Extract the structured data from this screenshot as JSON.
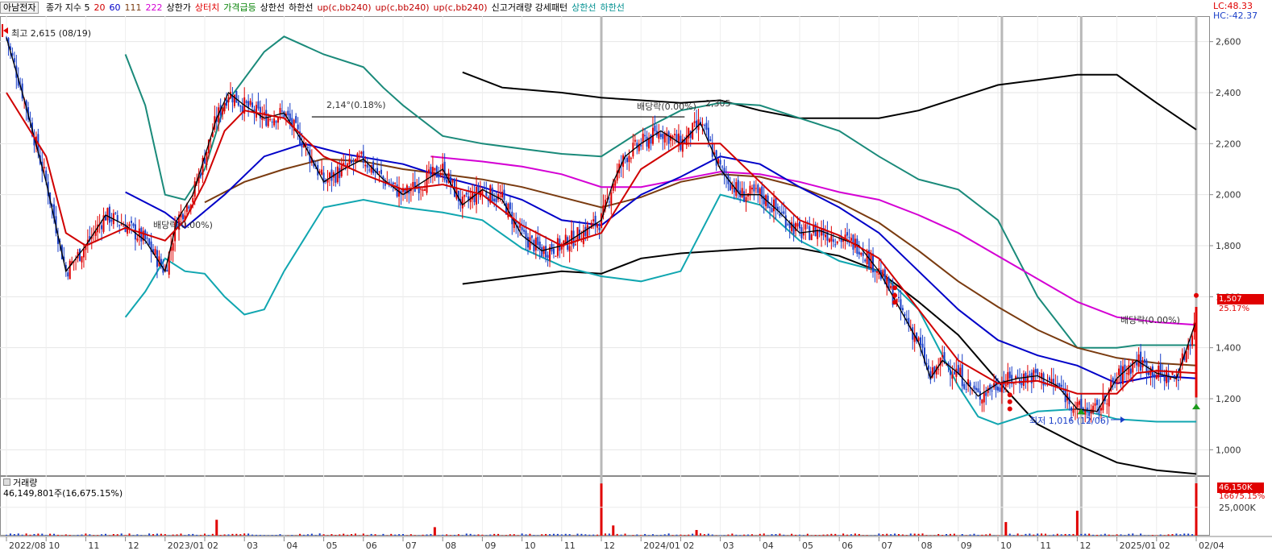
{
  "legend": {
    "symbol": "아남전자",
    "items": [
      {
        "text": "종가 지수 5",
        "color": "#000000"
      },
      {
        "text": "20",
        "color": "#d00000"
      },
      {
        "text": "60",
        "color": "#0000c8"
      },
      {
        "text": "111",
        "color": "#7a3b10"
      },
      {
        "text": "222",
        "color": "#d400d4"
      },
      {
        "text": "상한가",
        "color": "#000000"
      },
      {
        "text": "상터치",
        "color": "#e00000"
      },
      {
        "text": "가격급등",
        "color": "#008000"
      },
      {
        "text": "상한선",
        "color": "#000000"
      },
      {
        "text": "하한선",
        "color": "#000000"
      },
      {
        "text": "up(c,bb240)",
        "color": "#c00000"
      },
      {
        "text": "up(c,bb240)",
        "color": "#c00000"
      },
      {
        "text": "up(c,bb240)",
        "color": "#c00000"
      },
      {
        "text": "신고거래량 강세패턴",
        "color": "#000000"
      },
      {
        "text": "상한선",
        "color": "#009090"
      },
      {
        "text": "하한선",
        "color": "#009090"
      }
    ]
  },
  "corner": {
    "lc": "LC:48.33",
    "hc": "HC:-42.37"
  },
  "annotations": {
    "high": "최고 2,615 (08/19)",
    "low": "최저 1,016 (12/06)",
    "div1": "배당락(0.00%)",
    "div2": "2,14°(0.18%)",
    "div3": "배당락(0.00%)",
    "level": "2,305",
    "div4": "배당락(0.00%)"
  },
  "price_tags": {
    "last": "1,507",
    "change": "25.17%"
  },
  "volume": {
    "title": "거래량",
    "value": "46,149,801주(16,675.15%)",
    "tag1": "46,150K",
    "tag2": "16675.15%"
  },
  "colors": {
    "up": "#e00000",
    "down": "#1a3fc8",
    "ma5": "#000000",
    "ma20": "#d00000",
    "ma60": "#0000c8",
    "ma111": "#7a3b10",
    "ma222": "#d400d4",
    "bb_upper": "#1a8a7a",
    "bb_lower": "#10a6b0",
    "env": "#000000"
  },
  "chart_data": {
    "type": "candlestick",
    "y_axis_ticks": [
      1000,
      1200,
      1400,
      1600,
      1800,
      2000,
      2200,
      2400,
      2600
    ],
    "ylim": [
      900,
      2700
    ],
    "x_axis_labels": [
      "2022/08",
      "10",
      "11",
      "12",
      "2023/01",
      "02",
      "03",
      "04",
      "05",
      "06",
      "07",
      "08",
      "09",
      "10",
      "11",
      "12",
      "2024/01",
      "02",
      "03",
      "04",
      "05",
      "06",
      "07",
      "08",
      "09",
      "10",
      "11",
      "12",
      "2025/01",
      "02",
      "02/04"
    ],
    "close_path": [
      [
        0,
        2615
      ],
      [
        0.4,
        2400
      ],
      [
        1.0,
        2050
      ],
      [
        1.5,
        1700
      ],
      [
        2.0,
        1800
      ],
      [
        2.5,
        1920
      ],
      [
        3.0,
        1880
      ],
      [
        3.5,
        1820
      ],
      [
        4.0,
        1700
      ],
      [
        4.3,
        1900
      ],
      [
        4.7,
        2000
      ],
      [
        5.0,
        2150
      ],
      [
        5.3,
        2300
      ],
      [
        5.6,
        2400
      ],
      [
        6.0,
        2350
      ],
      [
        6.5,
        2300
      ],
      [
        7.0,
        2320
      ],
      [
        7.5,
        2200
      ],
      [
        8.0,
        2050
      ],
      [
        8.5,
        2100
      ],
      [
        9.0,
        2140
      ],
      [
        9.5,
        2060
      ],
      [
        10.0,
        2000
      ],
      [
        10.5,
        2050
      ],
      [
        11.0,
        2100
      ],
      [
        11.5,
        1960
      ],
      [
        12.0,
        2020
      ],
      [
        12.5,
        1980
      ],
      [
        13.0,
        1840
      ],
      [
        13.5,
        1780
      ],
      [
        14.0,
        1800
      ],
      [
        14.5,
        1850
      ],
      [
        15.0,
        1900
      ],
      [
        15.3,
        2050
      ],
      [
        15.6,
        2150
      ],
      [
        16.0,
        2200
      ],
      [
        16.5,
        2250
      ],
      [
        17.0,
        2200
      ],
      [
        17.5,
        2280
      ],
      [
        18.0,
        2100
      ],
      [
        18.5,
        2000
      ],
      [
        19.0,
        2000
      ],
      [
        19.5,
        1930
      ],
      [
        20.0,
        1850
      ],
      [
        20.5,
        1860
      ],
      [
        21.0,
        1830
      ],
      [
        21.5,
        1800
      ],
      [
        22.0,
        1700
      ],
      [
        22.5,
        1560
      ],
      [
        23.0,
        1420
      ],
      [
        23.3,
        1280
      ],
      [
        23.6,
        1350
      ],
      [
        24.0,
        1300
      ],
      [
        24.5,
        1210
      ],
      [
        25.0,
        1260
      ],
      [
        25.5,
        1280
      ],
      [
        26.0,
        1290
      ],
      [
        26.5,
        1250
      ],
      [
        27.0,
        1160
      ],
      [
        27.5,
        1150
      ],
      [
        28.0,
        1280
      ],
      [
        28.5,
        1350
      ],
      [
        29.0,
        1300
      ],
      [
        29.5,
        1280
      ],
      [
        30.0,
        1507
      ]
    ],
    "ma20_path": [
      [
        0,
        2400
      ],
      [
        1.0,
        2150
      ],
      [
        1.5,
        1850
      ],
      [
        2.0,
        1800
      ],
      [
        3.0,
        1870
      ],
      [
        4.0,
        1820
      ],
      [
        4.5,
        1900
      ],
      [
        5.0,
        2050
      ],
      [
        5.5,
        2250
      ],
      [
        6.0,
        2330
      ],
      [
        7.0,
        2300
      ],
      [
        8.0,
        2150
      ],
      [
        9.0,
        2080
      ],
      [
        10.0,
        2020
      ],
      [
        11.0,
        2040
      ],
      [
        12.0,
        2000
      ],
      [
        13.0,
        1880
      ],
      [
        14.0,
        1800
      ],
      [
        15.0,
        1850
      ],
      [
        16.0,
        2100
      ],
      [
        17.0,
        2200
      ],
      [
        18.0,
        2200
      ],
      [
        19.0,
        2050
      ],
      [
        20.0,
        1900
      ],
      [
        21.0,
        1840
      ],
      [
        22.0,
        1750
      ],
      [
        23.0,
        1550
      ],
      [
        24.0,
        1350
      ],
      [
        25.0,
        1260
      ],
      [
        26.0,
        1270
      ],
      [
        27.0,
        1220
      ],
      [
        28.0,
        1220
      ],
      [
        28.5,
        1300
      ],
      [
        29.0,
        1310
      ],
      [
        30.0,
        1300
      ]
    ],
    "ma60_path": [
      [
        3.0,
        2010
      ],
      [
        4.0,
        1930
      ],
      [
        4.5,
        1870
      ],
      [
        5.5,
        2000
      ],
      [
        6.5,
        2150
      ],
      [
        7.5,
        2200
      ],
      [
        8.5,
        2160
      ],
      [
        10.0,
        2120
      ],
      [
        11.0,
        2070
      ],
      [
        12.0,
        2030
      ],
      [
        13.0,
        1980
      ],
      [
        14.0,
        1900
      ],
      [
        15.0,
        1880
      ],
      [
        16.0,
        2000
      ],
      [
        17.0,
        2070
      ],
      [
        18.0,
        2150
      ],
      [
        19.0,
        2120
      ],
      [
        20.0,
        2030
      ],
      [
        21.0,
        1950
      ],
      [
        22.0,
        1850
      ],
      [
        23.0,
        1700
      ],
      [
        24.0,
        1550
      ],
      [
        25.0,
        1430
      ],
      [
        26.0,
        1370
      ],
      [
        27.0,
        1330
      ],
      [
        28.0,
        1260
      ],
      [
        29.0,
        1290
      ],
      [
        30.0,
        1280
      ]
    ],
    "ma111_path": [
      [
        5.0,
        1970
      ],
      [
        6.0,
        2050
      ],
      [
        7.0,
        2100
      ],
      [
        8.0,
        2140
      ],
      [
        9.0,
        2130
      ],
      [
        10.0,
        2100
      ],
      [
        11.0,
        2080
      ],
      [
        12.0,
        2060
      ],
      [
        13.0,
        2030
      ],
      [
        14.0,
        1990
      ],
      [
        15.0,
        1950
      ],
      [
        16.0,
        1990
      ],
      [
        17.0,
        2050
      ],
      [
        18.0,
        2080
      ],
      [
        19.0,
        2070
      ],
      [
        20.0,
        2030
      ],
      [
        21.0,
        1970
      ],
      [
        22.0,
        1890
      ],
      [
        23.0,
        1780
      ],
      [
        24.0,
        1660
      ],
      [
        25.0,
        1560
      ],
      [
        26.0,
        1470
      ],
      [
        27.0,
        1400
      ],
      [
        28.0,
        1360
      ],
      [
        29.0,
        1340
      ],
      [
        30.0,
        1330
      ]
    ],
    "ma222_path": [
      [
        10.7,
        2150
      ],
      [
        12.0,
        2130
      ],
      [
        13.0,
        2110
      ],
      [
        14.0,
        2080
      ],
      [
        15.0,
        2030
      ],
      [
        16.0,
        2030
      ],
      [
        17.0,
        2060
      ],
      [
        18.0,
        2090
      ],
      [
        19.0,
        2080
      ],
      [
        20.0,
        2050
      ],
      [
        21.0,
        2010
      ],
      [
        22.0,
        1980
      ],
      [
        23.0,
        1920
      ],
      [
        24.0,
        1850
      ],
      [
        25.0,
        1760
      ],
      [
        26.0,
        1670
      ],
      [
        27.0,
        1580
      ],
      [
        28.0,
        1520
      ],
      [
        29.0,
        1500
      ],
      [
        30.0,
        1490
      ]
    ],
    "bb_upper_path": [
      [
        3.0,
        2550
      ],
      [
        3.5,
        2350
      ],
      [
        4.0,
        2000
      ],
      [
        4.5,
        1980
      ],
      [
        5.0,
        2100
      ],
      [
        5.5,
        2350
      ],
      [
        6.5,
        2560
      ],
      [
        7.0,
        2620
      ],
      [
        8.0,
        2550
      ],
      [
        9.0,
        2500
      ],
      [
        9.5,
        2420
      ],
      [
        10.0,
        2350
      ],
      [
        11.0,
        2230
      ],
      [
        12.0,
        2200
      ],
      [
        13.0,
        2180
      ],
      [
        14.0,
        2160
      ],
      [
        15.0,
        2150
      ],
      [
        16.0,
        2250
      ],
      [
        17.0,
        2330
      ],
      [
        18.0,
        2360
      ],
      [
        19.0,
        2350
      ],
      [
        20.0,
        2300
      ],
      [
        21.0,
        2250
      ],
      [
        22.0,
        2150
      ],
      [
        23.0,
        2060
      ],
      [
        24.0,
        2020
      ],
      [
        25.0,
        1900
      ],
      [
        26.0,
        1600
      ],
      [
        27.0,
        1400
      ],
      [
        28.0,
        1400
      ],
      [
        28.5,
        1410
      ],
      [
        29.0,
        1410
      ],
      [
        30.0,
        1410
      ]
    ],
    "bb_lower_path": [
      [
        3.0,
        1520
      ],
      [
        3.5,
        1620
      ],
      [
        4.0,
        1750
      ],
      [
        4.5,
        1700
      ],
      [
        5.0,
        1690
      ],
      [
        5.5,
        1600
      ],
      [
        6.0,
        1530
      ],
      [
        6.5,
        1550
      ],
      [
        7.0,
        1700
      ],
      [
        8.0,
        1950
      ],
      [
        9.0,
        1980
      ],
      [
        10.0,
        1950
      ],
      [
        11.0,
        1930
      ],
      [
        12.0,
        1900
      ],
      [
        13.0,
        1790
      ],
      [
        14.0,
        1720
      ],
      [
        15.0,
        1680
      ],
      [
        16.0,
        1660
      ],
      [
        17.0,
        1700
      ],
      [
        17.5,
        1850
      ],
      [
        18.0,
        2000
      ],
      [
        19.0,
        1960
      ],
      [
        20.0,
        1820
      ],
      [
        21.0,
        1740
      ],
      [
        22.0,
        1700
      ],
      [
        23.0,
        1550
      ],
      [
        24.0,
        1250
      ],
      [
        24.5,
        1130
      ],
      [
        25.0,
        1100
      ],
      [
        26.0,
        1150
      ],
      [
        27.0,
        1160
      ],
      [
        28.0,
        1120
      ],
      [
        29.0,
        1110
      ],
      [
        30.0,
        1110
      ]
    ],
    "env_upper_path": [
      [
        11.5,
        2480
      ],
      [
        12.5,
        2420
      ],
      [
        14.0,
        2400
      ],
      [
        15.0,
        2380
      ],
      [
        16.0,
        2370
      ],
      [
        17.0,
        2360
      ],
      [
        18.0,
        2370
      ],
      [
        19.0,
        2330
      ],
      [
        20.0,
        2300
      ],
      [
        21.0,
        2300
      ],
      [
        22.0,
        2300
      ],
      [
        23.0,
        2330
      ],
      [
        24.0,
        2380
      ],
      [
        25.0,
        2430
      ],
      [
        26.0,
        2450
      ],
      [
        27.0,
        2470
      ],
      [
        28.0,
        2470
      ],
      [
        29.0,
        2360
      ],
      [
        30.0,
        2255
      ]
    ],
    "env_lower_path": [
      [
        11.5,
        1650
      ],
      [
        13.0,
        1680
      ],
      [
        14.0,
        1700
      ],
      [
        15.0,
        1690
      ],
      [
        16.0,
        1750
      ],
      [
        17.0,
        1770
      ],
      [
        18.0,
        1780
      ],
      [
        19.0,
        1790
      ],
      [
        20.0,
        1790
      ],
      [
        21.0,
        1760
      ],
      [
        22.0,
        1700
      ],
      [
        23.0,
        1580
      ],
      [
        24.0,
        1450
      ],
      [
        25.0,
        1270
      ],
      [
        26.0,
        1100
      ],
      [
        27.0,
        1020
      ],
      [
        28.0,
        950
      ],
      [
        29.0,
        920
      ],
      [
        30.0,
        905
      ]
    ],
    "volume_max_k": 46150,
    "volume_ticks": [
      "25,000K"
    ],
    "volume_spikes": [
      {
        "x": 5.3,
        "v": 14000
      },
      {
        "x": 10.8,
        "v": 7500
      },
      {
        "x": 15.0,
        "v": 46000
      },
      {
        "x": 15.3,
        "v": 9000
      },
      {
        "x": 17.4,
        "v": 5000
      },
      {
        "x": 25.2,
        "v": 12000
      },
      {
        "x": 27.0,
        "v": 22000
      },
      {
        "x": 30.0,
        "v": 46150
      }
    ]
  }
}
